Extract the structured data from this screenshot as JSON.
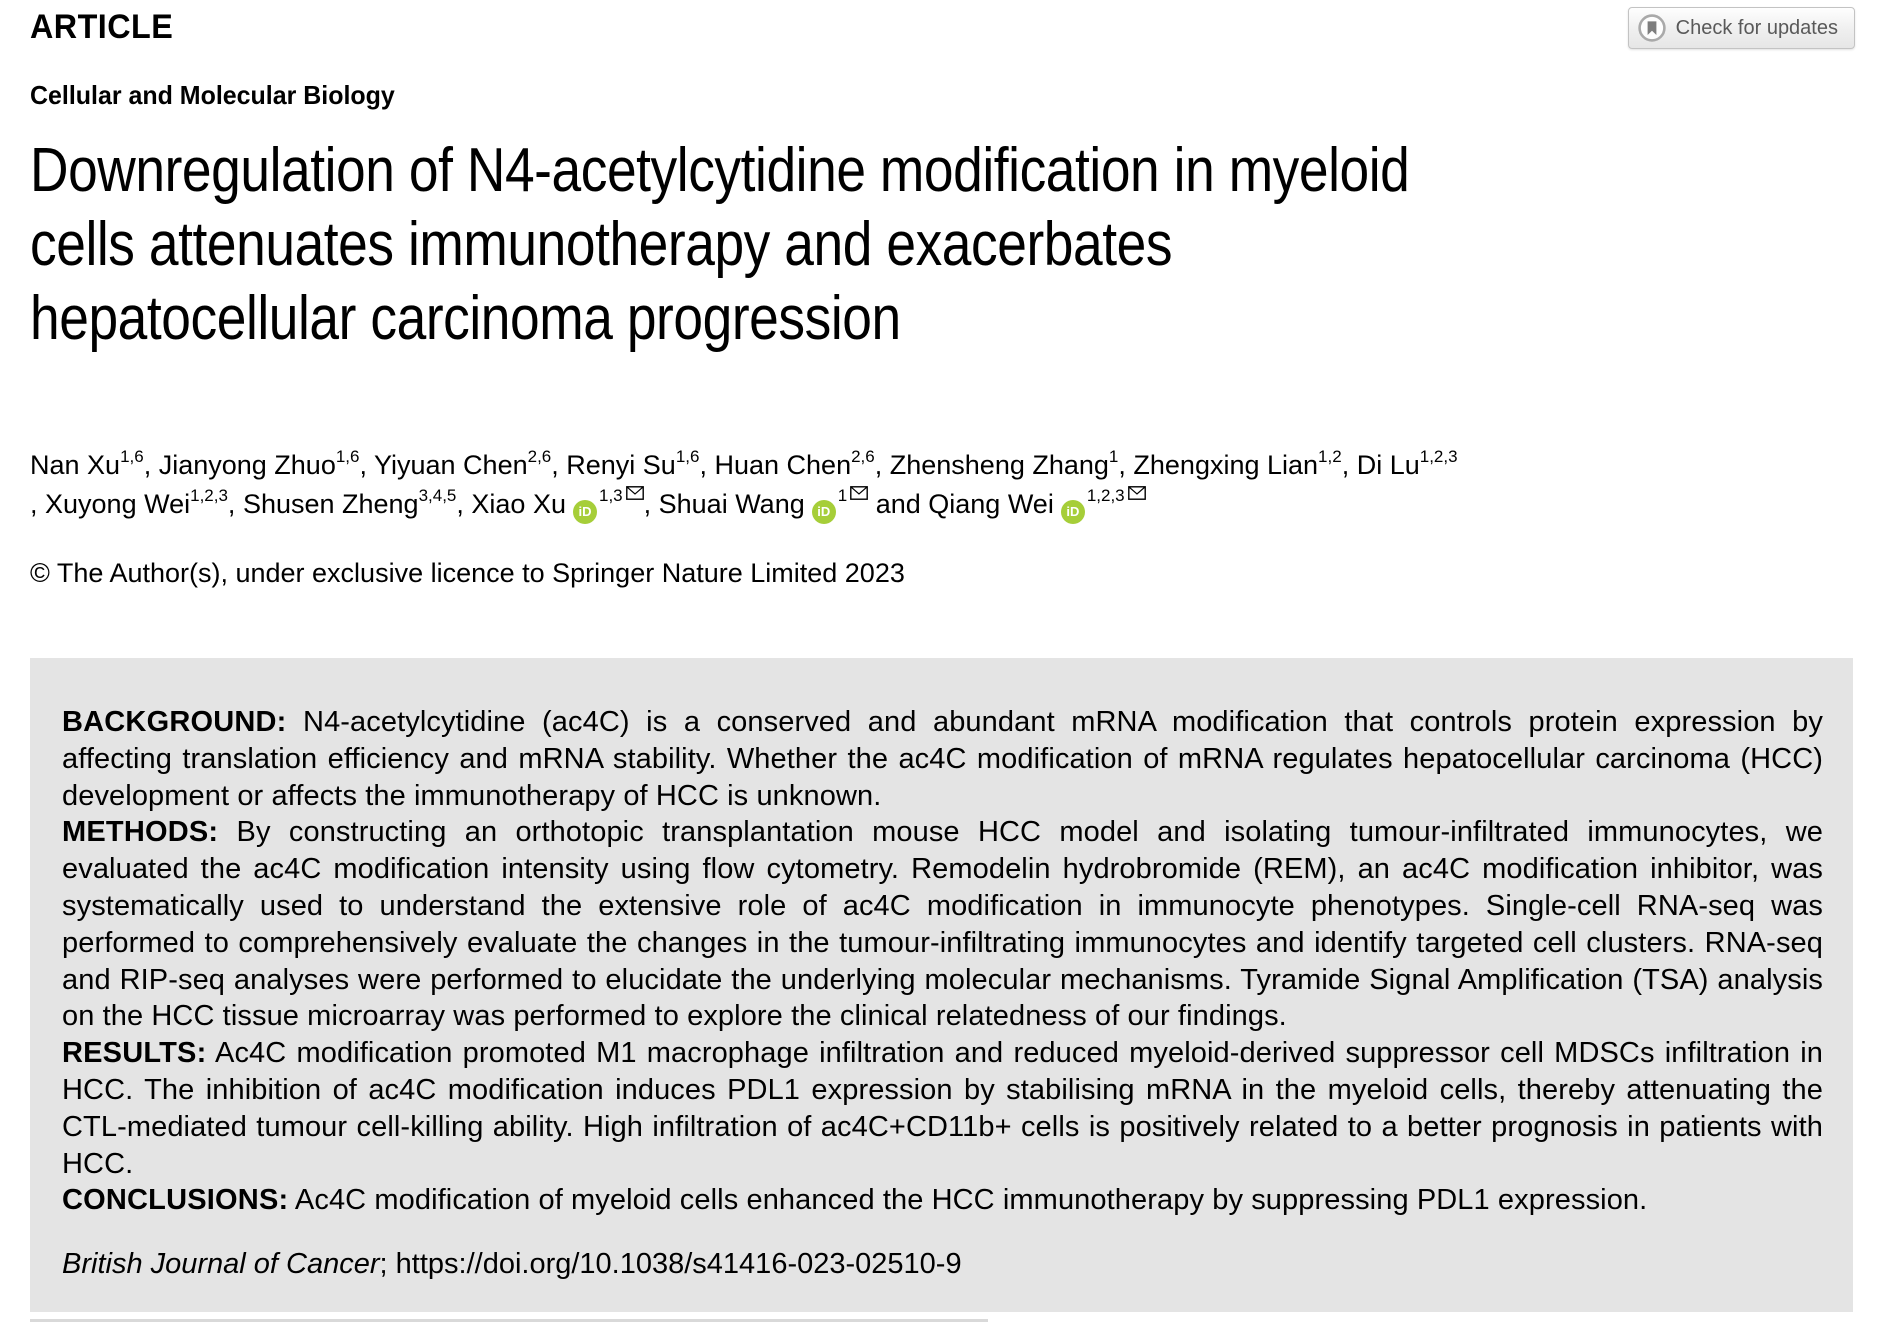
{
  "header": {
    "article_label": "ARTICLE",
    "check_for_updates": "Check for updates",
    "subject_category": "Cellular and Molecular Biology"
  },
  "title_lines": [
    "Downregulation of N4-acetylcytidine modification in myeloid",
    "cells attenuates immunotherapy and exacerbates",
    "hepatocellular carcinoma progression"
  ],
  "authors_meta": {
    "separator": ", ",
    "last_separator": " and ",
    "orcid_label": "iD"
  },
  "authors": [
    {
      "name": "Nan Xu",
      "affiliations": "1,6"
    },
    {
      "name": "Jianyong Zhuo",
      "affiliations": "1,6"
    },
    {
      "name": "Yiyuan Chen",
      "affiliations": "2,6"
    },
    {
      "name": "Renyi Su",
      "affiliations": "1,6"
    },
    {
      "name": "Huan Chen",
      "affiliations": "2,6"
    },
    {
      "name": "Zhensheng Zhang",
      "affiliations": "1"
    },
    {
      "name": "Zhengxing Lian",
      "affiliations": "1,2"
    },
    {
      "name": "Di Lu",
      "affiliations": "1,2,3",
      "break_after": true
    },
    {
      "name": "Xuyong Wei",
      "affiliations": "1,2,3"
    },
    {
      "name": "Shusen Zheng",
      "affiliations": "3,4,5"
    },
    {
      "name": "Xiao Xu",
      "orcid": true,
      "affiliations": "1,3",
      "email": true
    },
    {
      "name": "Shuai Wang",
      "orcid": true,
      "affiliations": "1",
      "email": true
    },
    {
      "name": "Qiang Wei",
      "orcid": true,
      "affiliations": "1,2,3",
      "email": true
    }
  ],
  "copyright": "© The Author(s), under exclusive licence to Springer Nature Limited 2023",
  "abstract": {
    "sections": [
      {
        "label": "BACKGROUND:",
        "text": "N4-acetylcytidine (ac4C) is a conserved and abundant mRNA modification that controls protein expression by affecting translation efficiency and mRNA stability. Whether the ac4C modification of mRNA regulates hepatocellular carcinoma (HCC) development or affects the immunotherapy of HCC is unknown."
      },
      {
        "label": "METHODS:",
        "text": "By constructing an orthotopic transplantation mouse HCC model and isolating tumour-infiltrated immunocytes, we evaluated the ac4C modification intensity using flow cytometry. Remodelin hydrobromide (REM), an ac4C modification inhibitor, was systematically used to understand the extensive role of ac4C modification in immunocyte phenotypes. Single-cell RNA-seq was performed to comprehensively evaluate the changes in the tumour-infiltrating immunocytes and identify targeted cell clusters. RNA-seq and RIP-seq analyses were performed to elucidate the underlying molecular mechanisms. Tyramide Signal Amplification (TSA) analysis on the HCC tissue microarray was performed to explore the clinical relatedness of our findings."
      },
      {
        "label": "RESULTS:",
        "text": "Ac4C modification promoted M1 macrophage infiltration and reduced myeloid-derived suppressor cell MDSCs infiltration in HCC. The inhibition of ac4C modification induces PDL1 expression by stabilising mRNA in the myeloid cells, thereby attenuating the CTL-mediated tumour cell-killing ability. High infiltration of ac4C+CD11b+ cells is positively related to a better prognosis in patients with HCC."
      },
      {
        "label": "CONCLUSIONS:",
        "text": "Ac4C modification of myeloid cells enhanced the HCC immunotherapy by suppressing PDL1 expression."
      }
    ]
  },
  "citation": {
    "journal": "British Journal of Cancer",
    "rest": "; https://doi.org/10.1038/s41416-023-02510-9"
  },
  "colors": {
    "orcid_green": "#A6CE39",
    "abstract_background": "#e4e4e4"
  }
}
